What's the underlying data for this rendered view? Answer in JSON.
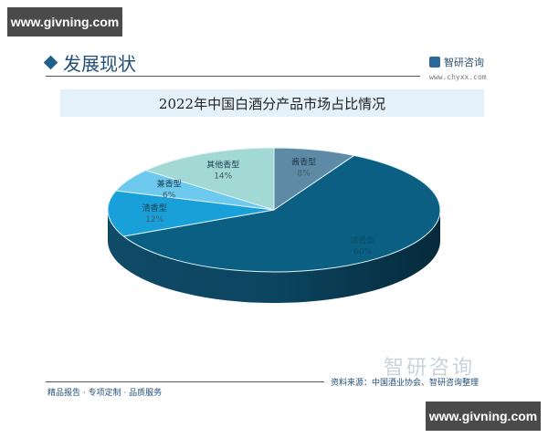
{
  "watermark": {
    "text": "www.givning.com"
  },
  "header": {
    "section_title": "发展现状",
    "brand_name": "智研咨询",
    "brand_url": "www.chyxx.com"
  },
  "chart_data": {
    "type": "pie",
    "title": "2022年中国白酒分产品市场占比情况",
    "categories": [
      "酱香型",
      "浓香型",
      "清香型",
      "兼香型",
      "其他香型"
    ],
    "values": [
      8,
      60,
      12,
      6,
      14
    ],
    "labels": [
      "8%",
      "60%",
      "12%",
      "6%",
      "14%"
    ],
    "colors": [
      "#5e8aa6",
      "#0b5f82",
      "#1aa0d8",
      "#6ec9ef",
      "#a3d9d5"
    ],
    "style": "3d",
    "legend": "none"
  },
  "footer": {
    "tagline": "精品报告 · 专项定制 · 品质服务",
    "source": "资料来源：中国酒业协会、智研咨询整理",
    "brand_watermark": "智研咨询"
  }
}
